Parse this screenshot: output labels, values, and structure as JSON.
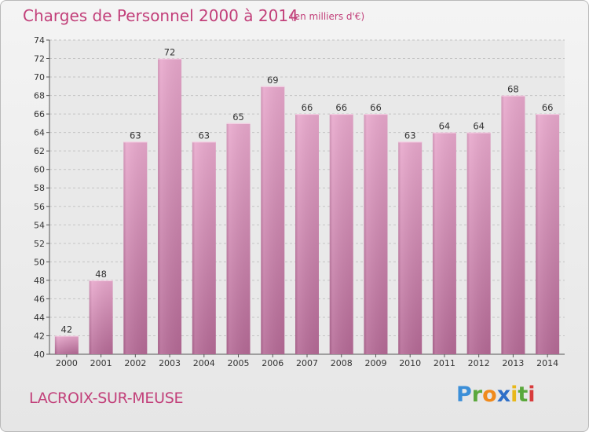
{
  "header": {
    "title": "Charges de Personnel 2000 à 2014",
    "subtitle": "(en milliers d'€)"
  },
  "footer": {
    "commune": "LACROIX-SUR-MEUSE",
    "logo_text": "Proxiti"
  },
  "colors": {
    "title": "#c2407a",
    "bar_top": "#e8a8cc",
    "bar_bottom": "#b56a96"
  },
  "chart_data": {
    "type": "bar",
    "title": "Charges de Personnel 2000 à 2014",
    "subtitle": "(en milliers d'€)",
    "xlabel": "",
    "ylabel": "",
    "categories": [
      "2000",
      "2001",
      "2002",
      "2003",
      "2004",
      "2005",
      "2006",
      "2007",
      "2008",
      "2009",
      "2010",
      "2011",
      "2012",
      "2013",
      "2014"
    ],
    "values": [
      42,
      48,
      63,
      72,
      63,
      65,
      69,
      66,
      66,
      66,
      63,
      64,
      64,
      68,
      66
    ],
    "ylim": [
      40,
      74
    ],
    "yticks": [
      40,
      42,
      44,
      46,
      48,
      50,
      52,
      54,
      56,
      58,
      60,
      62,
      64,
      66,
      68,
      70,
      72,
      74
    ],
    "grid": true,
    "legend": "none"
  }
}
